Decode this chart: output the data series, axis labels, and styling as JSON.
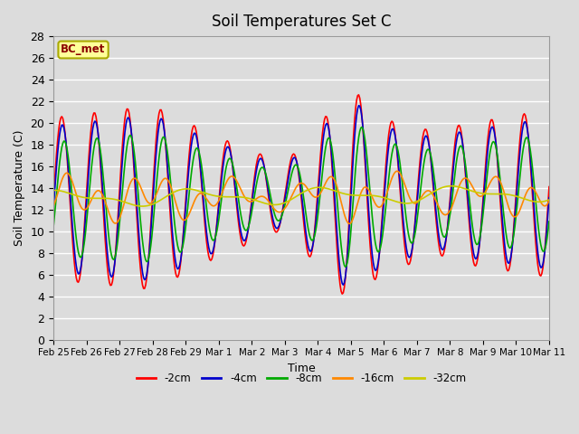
{
  "title": "Soil Temperatures Set C",
  "xlabel": "Time",
  "ylabel": "Soil Temperature (C)",
  "annotation": "BC_met",
  "background_color": "#dcdcdc",
  "plot_bg_color": "#dcdcdc",
  "ylim": [
    0,
    28
  ],
  "yticks": [
    0,
    2,
    4,
    6,
    8,
    10,
    12,
    14,
    16,
    18,
    20,
    22,
    24,
    26,
    28
  ],
  "x_labels": [
    "Feb 25",
    "Feb 26",
    "Feb 27",
    "Feb 28",
    "Feb 29",
    "Mar 1",
    "Mar 2",
    "Mar 3",
    "Mar 4",
    "Mar 5",
    "Mar 6",
    "Mar 7",
    "Mar 8",
    "Mar 9",
    "Mar 10",
    "Mar 11"
  ],
  "series_colors": [
    "#ff0000",
    "#0000cc",
    "#00aa00",
    "#ff8800",
    "#cccc00"
  ],
  "series_labels": [
    "-2cm",
    "-4cm",
    "-8cm",
    "-16cm",
    "-32cm"
  ],
  "days": 15,
  "n_pts": 480
}
